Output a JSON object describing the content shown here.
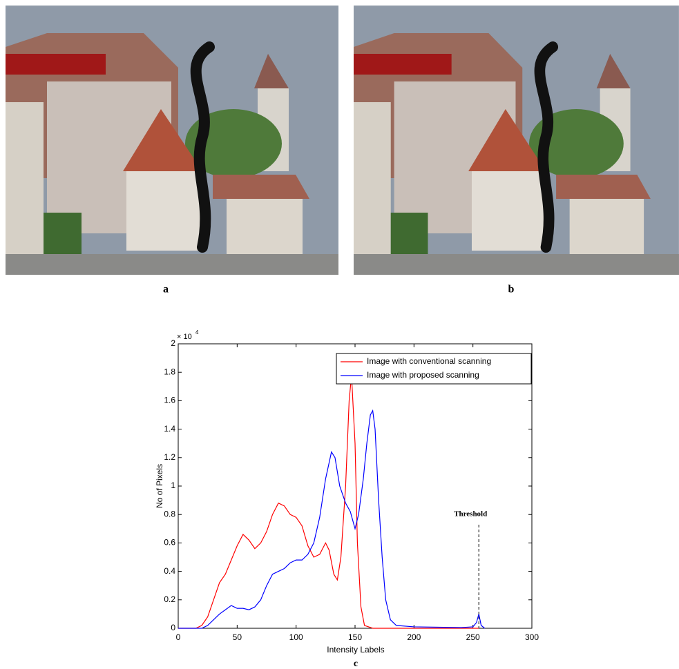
{
  "panel_labels": {
    "a": "a",
    "b": "b",
    "c": "c"
  },
  "chart_data": {
    "type": "line",
    "xlabel": "Intensity Labels",
    "ylabel": "No of Pixels",
    "y_multiplier": {
      "base": "× 10",
      "power": "4"
    },
    "xlim": [
      0,
      300
    ],
    "ylim": [
      0,
      2
    ],
    "xticks": [
      0,
      50,
      100,
      150,
      200,
      250,
      300
    ],
    "yticks": [
      0,
      0.2,
      0.4,
      0.6,
      0.8,
      1,
      1.2,
      1.4,
      1.6,
      1.8,
      2
    ],
    "legend": "top-right",
    "threshold": {
      "label": "Threshold",
      "x": 255
    },
    "series": [
      {
        "name": "Image with conventional scanning",
        "color": "#ff0000",
        "x": [
          0,
          15,
          20,
          25,
          30,
          35,
          40,
          45,
          50,
          55,
          60,
          65,
          70,
          75,
          80,
          85,
          90,
          95,
          100,
          105,
          110,
          115,
          120,
          125,
          128,
          132,
          135,
          138,
          142,
          145,
          147,
          150,
          152,
          155,
          158,
          165,
          200,
          255
        ],
        "values": [
          0,
          0,
          0.02,
          0.08,
          0.2,
          0.32,
          0.38,
          0.48,
          0.58,
          0.66,
          0.62,
          0.56,
          0.6,
          0.68,
          0.8,
          0.88,
          0.86,
          0.8,
          0.78,
          0.72,
          0.58,
          0.5,
          0.52,
          0.6,
          0.55,
          0.38,
          0.34,
          0.5,
          1.0,
          1.6,
          1.78,
          1.3,
          0.6,
          0.15,
          0.02,
          0,
          0,
          0
        ]
      },
      {
        "name": "Image with proposed scanning",
        "color": "#0000ff",
        "x": [
          0,
          20,
          25,
          30,
          35,
          40,
          45,
          50,
          55,
          60,
          65,
          70,
          75,
          80,
          85,
          90,
          95,
          100,
          105,
          110,
          115,
          120,
          125,
          130,
          133,
          137,
          142,
          146,
          150,
          153,
          157,
          160,
          163,
          165,
          167,
          170,
          173,
          176,
          180,
          185,
          200,
          240,
          250,
          253,
          255,
          257,
          260
        ],
        "values": [
          0,
          0,
          0.02,
          0.06,
          0.1,
          0.13,
          0.16,
          0.14,
          0.14,
          0.13,
          0.15,
          0.2,
          0.3,
          0.38,
          0.4,
          0.42,
          0.46,
          0.48,
          0.48,
          0.52,
          0.6,
          0.78,
          1.05,
          1.24,
          1.2,
          1.0,
          0.88,
          0.82,
          0.7,
          0.8,
          1.05,
          1.3,
          1.5,
          1.53,
          1.4,
          0.9,
          0.5,
          0.2,
          0.06,
          0.02,
          0.01,
          0.005,
          0.01,
          0.04,
          0.1,
          0.02,
          0
        ]
      }
    ]
  }
}
